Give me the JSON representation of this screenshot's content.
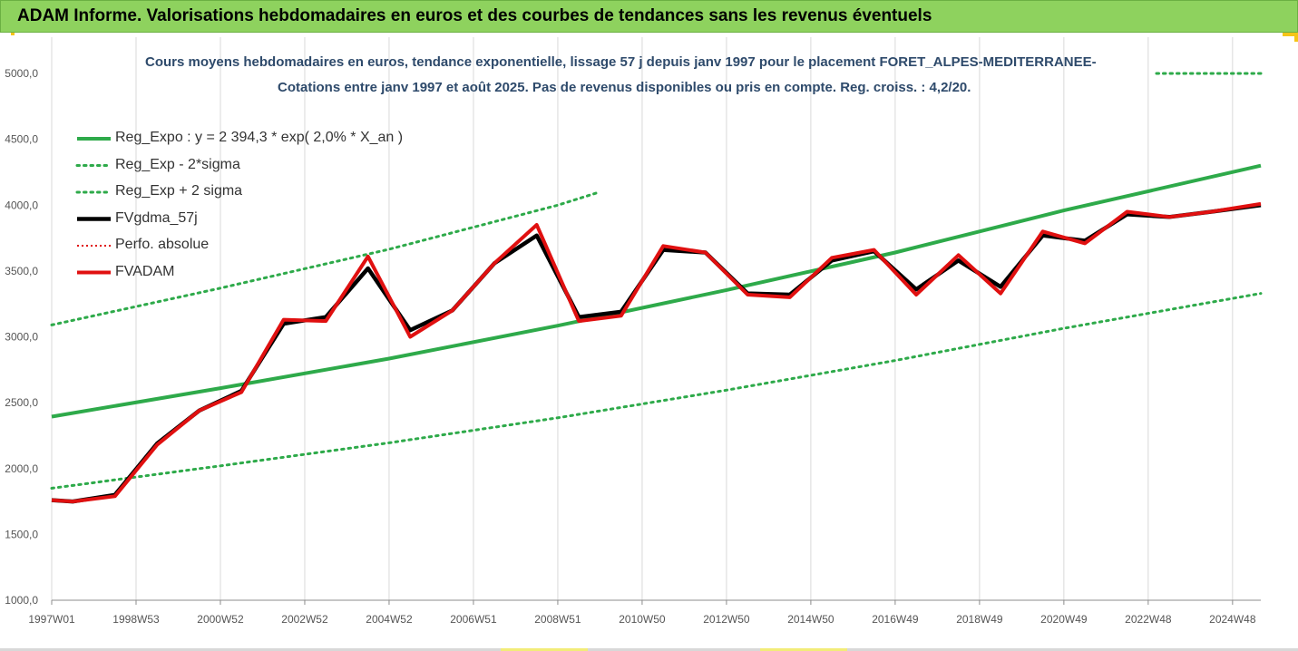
{
  "header": {
    "title": "ADAM Informe. Valorisations hebdomadaires en euros et des courbes de tendances sans les revenus éventuels"
  },
  "chart_data": {
    "type": "line",
    "title_line1": "Cours moyens hebdomadaires en euros, tendance exponentielle, lissage 57 j depuis janv 1997 pour le placement FORET_ALPES-MEDITERRANEE-",
    "title_line2": "Cotations entre janv 1997 et août 2025. Pas de revenus disponibles ou pris en compte. Reg. croiss. : 4,2/20.",
    "ylim": [
      1000,
      5000
    ],
    "yticks": [
      1000,
      1500,
      2000,
      2500,
      3000,
      3500,
      4000,
      4500,
      5000
    ],
    "ytick_labels": [
      "1000,0",
      "1500,0",
      "2000,0",
      "2500,0",
      "3000,0",
      "3500,0",
      "4000,0",
      "4500,0",
      "5000,0"
    ],
    "xlim": [
      1997.0,
      2025.67
    ],
    "xticks": [
      1997.0,
      1999.0,
      2001.0,
      2003.0,
      2005.0,
      2007.0,
      2009.0,
      2011.0,
      2013.0,
      2015.0,
      2017.0,
      2019.0,
      2021.0,
      2023.0,
      2025.0
    ],
    "xtick_labels": [
      "1997W01",
      "1998W53",
      "2000W52",
      "2002W52",
      "2004W52",
      "2006W51",
      "2008W51",
      "2010W50",
      "2012W50",
      "2014W50",
      "2016W49",
      "2018W49",
      "2020W49",
      "2022W48",
      "2024W48"
    ],
    "legend_position": "top-left",
    "grid": "vertical",
    "series": [
      {
        "name": "Reg_Expo : y = 2 394,3 * exp( 2,0% *  X_an )",
        "role": "trend",
        "color": "#2eaa4a",
        "style": "solid",
        "x": [
          1997.0,
          2001.0,
          2005.0,
          2009.0,
          2013.0,
          2017.0,
          2021.0,
          2025.67
        ],
        "y": [
          2394,
          2610,
          2835,
          3085,
          3355,
          3640,
          3960,
          4300
        ]
      },
      {
        "name": "Reg_Exp - 2*sigma",
        "role": "lower",
        "color": "#2eaa4a",
        "style": "dotted",
        "x": [
          1997.0,
          2001.0,
          2005.0,
          2009.0,
          2013.0,
          2017.0,
          2021.0,
          2025.67
        ],
        "y": [
          1850,
          2020,
          2195,
          2385,
          2595,
          2820,
          3065,
          3330
        ]
      },
      {
        "name": "Reg_Exp + 2 sigma",
        "role": "upper",
        "color": "#2eaa4a",
        "style": "dotted",
        "x": [
          1997.0,
          2001.0,
          2005.0,
          2009.0,
          2010.0
        ],
        "y": [
          3090,
          3370,
          3665,
          4000,
          4100
        ]
      },
      {
        "name": "FVgdma_57j",
        "role": "smoothed",
        "color": "#000000",
        "style": "solid",
        "x": [
          1997.0,
          1997.5,
          1998.5,
          1999.5,
          2000.5,
          2001.5,
          2002.5,
          2003.5,
          2004.5,
          2005.5,
          2006.5,
          2007.5,
          2008.5,
          2009.5,
          2010.5,
          2011.5,
          2012.5,
          2013.5,
          2014.5,
          2015.5,
          2016.5,
          2017.5,
          2018.5,
          2019.5,
          2020.5,
          2021.5,
          2022.5,
          2023.5,
          2024.5,
          2025.67
        ],
        "y": [
          1760,
          1750,
          1800,
          2190,
          2440,
          2590,
          3100,
          3150,
          3520,
          3050,
          3200,
          3560,
          3770,
          3150,
          3190,
          3660,
          3640,
          3330,
          3320,
          3580,
          3650,
          3360,
          3580,
          3380,
          3770,
          3730,
          3930,
          3910,
          3950,
          4000
        ]
      },
      {
        "name": "Perfo. absolue",
        "role": "perf",
        "color": "#e01010",
        "style": "dotted",
        "x": [
          1997.0,
          1997.5,
          1998.5,
          1999.5,
          2000.5,
          2001.5,
          2002.5,
          2003.5,
          2004.5,
          2005.5,
          2006.5,
          2007.5,
          2008.5,
          2009.5,
          2010.5,
          2011.5,
          2012.5,
          2013.5,
          2014.5,
          2015.5,
          2016.5,
          2017.5,
          2018.5,
          2019.5,
          2020.5,
          2021.5,
          2022.5,
          2023.5,
          2024.5,
          2025.67
        ],
        "y": [
          1760,
          1750,
          1790,
          2180,
          2440,
          2580,
          3130,
          3120,
          3610,
          3000,
          3200,
          3560,
          3850,
          3120,
          3160,
          3690,
          3640,
          3320,
          3300,
          3600,
          3660,
          3320,
          3620,
          3330,
          3800,
          3710,
          3950,
          3910,
          3950,
          4010
        ]
      },
      {
        "name": "FVADAM",
        "role": "main",
        "color": "#e01010",
        "style": "solid",
        "x": [
          1997.0,
          1997.5,
          1998.5,
          1999.5,
          2000.5,
          2001.5,
          2002.5,
          2003.5,
          2004.5,
          2005.5,
          2006.5,
          2007.5,
          2008.5,
          2009.5,
          2010.5,
          2011.5,
          2012.5,
          2013.5,
          2014.5,
          2015.5,
          2016.5,
          2017.5,
          2018.5,
          2019.5,
          2020.5,
          2021.5,
          2022.5,
          2023.5,
          2024.5,
          2025.67
        ],
        "y": [
          1760,
          1750,
          1790,
          2180,
          2440,
          2580,
          3130,
          3120,
          3610,
          3000,
          3200,
          3560,
          3850,
          3120,
          3160,
          3690,
          3640,
          3320,
          3300,
          3600,
          3660,
          3320,
          3620,
          3330,
          3800,
          3710,
          3950,
          3910,
          3950,
          4010
        ]
      }
    ]
  }
}
